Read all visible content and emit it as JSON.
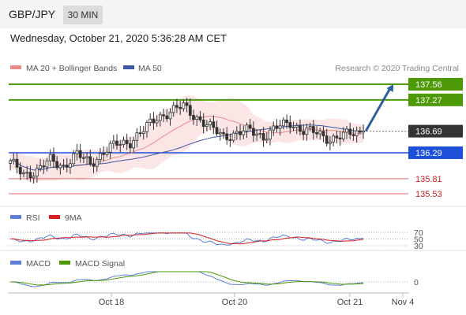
{
  "header": {
    "symbol": "GBP/JPY",
    "timeframe": "30 MIN",
    "datetime": "Wednesday, October 21, 2020 5:36:28 AM CET"
  },
  "legend": {
    "ma20": "MA 20 + Bollinger Bands",
    "ma50": "MA 50",
    "credit": "Research © 2020 Trading Central"
  },
  "rsi": {
    "label": "RSI",
    "signal_label": "9MA"
  },
  "macd": {
    "label": "MACD",
    "signal_label": "MACD Signal"
  },
  "x_labels": [
    "Oct 18",
    "Oct 20",
    "Oct 21",
    "Nov 4"
  ],
  "colors": {
    "green": "#4e9a06",
    "blue": "#1e4fd8",
    "red": "#e06666",
    "dark": "#333333",
    "ma20": "#e88a8a",
    "ma50": "#3f57a6",
    "band": "#f7c5c5",
    "candle_up": "#ffffff",
    "candle_down": "#333333"
  },
  "chart_data": [
    {
      "type": "candlestick",
      "title": "GBP/JPY 30 MIN",
      "x_range_bars": [
        0,
        120
      ],
      "ylim": [
        135.4,
        137.7
      ],
      "current_price": 136.69,
      "levels": [
        {
          "value": 137.56,
          "kind": "resistance",
          "label": "137.56"
        },
        {
          "value": 137.27,
          "kind": "resistance",
          "label": "137.27"
        },
        {
          "value": 136.69,
          "kind": "current",
          "label": "136.69"
        },
        {
          "value": 136.29,
          "kind": "pivot",
          "label": "136.29"
        },
        {
          "value": 135.81,
          "kind": "support",
          "label": "135.81"
        },
        {
          "value": 135.53,
          "kind": "support",
          "label": "135.53"
        }
      ],
      "forecast_arrow": {
        "from_bar": 106,
        "from_price": 136.69,
        "to_bar": 115,
        "to_price": 137.56
      },
      "close_path": [
        [
          0,
          136.1
        ],
        [
          4,
          135.9
        ],
        [
          8,
          135.95
        ],
        [
          12,
          136.15
        ],
        [
          16,
          136.05
        ],
        [
          20,
          136.25
        ],
        [
          24,
          136.1
        ],
        [
          28,
          136.3
        ],
        [
          32,
          136.45
        ],
        [
          36,
          136.5
        ],
        [
          40,
          136.7
        ],
        [
          44,
          136.95
        ],
        [
          48,
          137.05
        ],
        [
          52,
          137.15
        ],
        [
          56,
          136.95
        ],
        [
          60,
          136.75
        ],
        [
          64,
          136.6
        ],
        [
          68,
          136.65
        ],
        [
          72,
          136.7
        ],
        [
          76,
          136.6
        ],
        [
          80,
          136.75
        ],
        [
          84,
          136.85
        ],
        [
          88,
          136.7
        ],
        [
          92,
          136.65
        ],
        [
          96,
          136.55
        ],
        [
          100,
          136.6
        ],
        [
          104,
          136.67
        ],
        [
          106,
          136.69
        ]
      ]
    },
    {
      "type": "line",
      "title": "RSI",
      "ylim": [
        25,
        75
      ],
      "ref_levels": [
        70,
        50,
        30
      ],
      "series": [
        {
          "name": "RSI"
        },
        {
          "name": "9MA"
        }
      ]
    },
    {
      "type": "line",
      "title": "MACD",
      "ref_levels": [
        0
      ],
      "series": [
        {
          "name": "MACD"
        },
        {
          "name": "MACD Signal"
        }
      ]
    }
  ]
}
